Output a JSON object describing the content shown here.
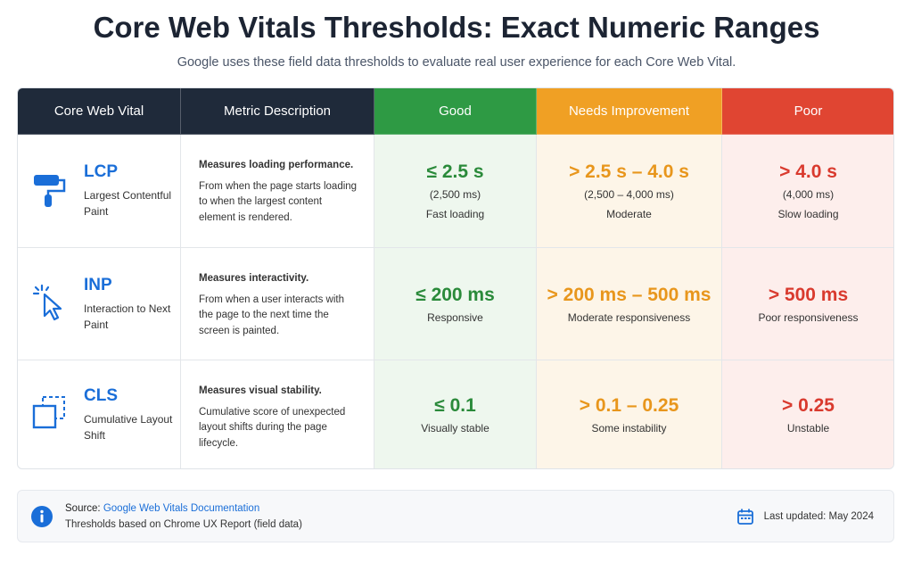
{
  "header": {
    "title": "Core Web Vitals Thresholds: Exact Numeric Ranges",
    "subtitle": "Google uses these field data thresholds to evaluate real user experience for each Core Web Vital."
  },
  "table": {
    "columns": [
      "Core Web Vital",
      "Metric Description",
      "Good",
      "Needs Improvement",
      "Poor"
    ],
    "rows": [
      {
        "abbr": "LCP",
        "name": "Largest Contentful Paint",
        "desc_title": "Measures loading performance.",
        "desc": "From when the page starts loading to when the largest content element is rendered.",
        "good": {
          "range": "≤ 2.5 s",
          "ms": "(2,500 ms)",
          "label": "Fast loading"
        },
        "needs": {
          "range": "> 2.5 s – 4.0 s",
          "ms": "(2,500 – 4,000 ms)",
          "label": "Moderate"
        },
        "poor": {
          "range": ">  4.0 s",
          "ms": "(4,000 ms)",
          "label": "Slow loading"
        }
      },
      {
        "abbr": "INP",
        "name": "Interaction to Next Paint",
        "desc_title": "Measures interactivity.",
        "desc": "From when a user interacts with the page to the next time the screen is painted.",
        "good": {
          "range": "≤ 200 ms",
          "label": "Responsive"
        },
        "needs": {
          "range": "> 200 ms – 500 ms",
          "label": "Moderate responsiveness"
        },
        "poor": {
          "range": "> 500 ms",
          "label": "Poor responsiveness"
        }
      },
      {
        "abbr": "CLS",
        "name": "Cumulative Layout Shift",
        "desc_title": "Measures visual stability.",
        "desc": "Cumulative score of unexpected layout shifts during the page lifecycle.",
        "good": {
          "range": "≤ 0.1",
          "label": "Visually stable"
        },
        "needs": {
          "range": "> 0.1 – 0.25",
          "label": "Some instability"
        },
        "poor": {
          "range": "> 0.25",
          "label": "Unstable"
        }
      }
    ]
  },
  "footer": {
    "source_label": "Source:",
    "source_link": "Google Web Vitals Documentation",
    "note": "Thresholds based on Chrome UX Report (field data)",
    "updated": "Last updated: May 2024"
  }
}
